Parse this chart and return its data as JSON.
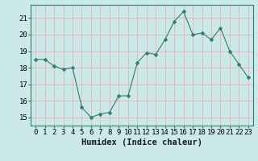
{
  "x": [
    0,
    1,
    2,
    3,
    4,
    5,
    6,
    7,
    8,
    9,
    10,
    11,
    12,
    13,
    14,
    15,
    16,
    17,
    18,
    19,
    20,
    21,
    22,
    23
  ],
  "y": [
    18.5,
    18.5,
    18.1,
    17.9,
    18.0,
    15.6,
    15.0,
    15.2,
    15.3,
    16.3,
    16.3,
    18.3,
    18.9,
    18.8,
    19.7,
    20.8,
    21.4,
    20.0,
    20.1,
    19.7,
    20.4,
    19.0,
    18.2,
    17.4
  ],
  "line_color": "#2e7d6e",
  "marker": "D",
  "marker_size": 2.5,
  "bg_color": "#cce9e9",
  "grid_major_color": "#f08080",
  "grid_minor_color": "#f5c0c0",
  "xlabel": "Humidex (Indice chaleur)",
  "ylim": [
    14.5,
    21.8
  ],
  "xlim": [
    -0.5,
    23.5
  ],
  "yticks": [
    15,
    16,
    17,
    18,
    19,
    20,
    21
  ],
  "xticks": [
    0,
    1,
    2,
    3,
    4,
    5,
    6,
    7,
    8,
    9,
    10,
    11,
    12,
    13,
    14,
    15,
    16,
    17,
    18,
    19,
    20,
    21,
    22,
    23
  ],
  "xlabel_fontsize": 7.5,
  "tick_fontsize": 6.5,
  "spine_color": "#2e7d6e",
  "grid_color": "#e8b0b0"
}
